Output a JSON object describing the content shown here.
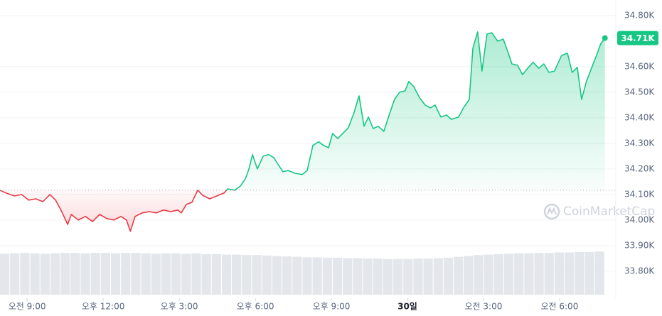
{
  "chart_data": {
    "type": "line",
    "x": [
      7.93,
      8.16,
      8.5,
      8.78,
      9.06,
      9.34,
      9.62,
      9.9,
      10.12,
      10.32,
      10.6,
      10.74,
      11.02,
      11.3,
      11.58,
      11.86,
      12.14,
      12.42,
      12.7,
      12.92,
      13.07,
      13.26,
      13.54,
      13.82,
      14.1,
      14.38,
      14.66,
      14.95,
      15.08,
      15.28,
      15.5,
      15.73,
      15.92,
      16.2,
      16.48,
      16.77,
      16.91,
      17.19,
      17.41,
      17.61,
      17.75,
      17.89,
      18.08,
      18.31,
      18.53,
      18.73,
      18.87,
      19.09,
      19.29,
      19.57,
      19.85,
      20.05,
      20.27,
      20.5,
      20.69,
      20.89,
      21.05,
      21.25,
      21.45,
      21.67,
      21.9,
      22.09,
      22.29,
      22.46,
      22.65,
      22.85,
      23.07,
      23.3,
      23.49,
      23.69,
      23.91,
      24.05,
      24.25,
      24.48,
      24.7,
      24.9,
      25.09,
      25.32,
      25.54,
      25.74,
      26.02,
      26.21,
      26.44,
      26.58,
      26.77,
      26.94,
      27.14,
      27.33,
      27.56,
      27.78,
      27.98,
      28.12,
      28.34,
      28.54,
      28.74,
      28.96,
      29.18,
      29.38,
      29.58,
      29.8,
      30.08,
      30.31,
      30.5,
      30.7,
      30.87,
      31.06,
      31.26,
      31.48,
      31.62,
      31.79
    ],
    "values": [
      34117,
      34106,
      34094,
      34100,
      34078,
      34083,
      34072,
      34100,
      34078,
      34042,
      33983,
      34022,
      34000,
      34014,
      33994,
      34022,
      34006,
      34000,
      34014,
      34000,
      33956,
      34014,
      34028,
      34033,
      34028,
      34039,
      34033,
      34039,
      34028,
      34061,
      34069,
      34117,
      34097,
      34083,
      34094,
      34106,
      34122,
      34117,
      34133,
      34161,
      34200,
      34256,
      34200,
      34250,
      34256,
      34244,
      34222,
      34189,
      34194,
      34183,
      34178,
      34194,
      34292,
      34306,
      34292,
      34283,
      34339,
      34319,
      34339,
      34361,
      34422,
      34486,
      34367,
      34403,
      34358,
      34367,
      34347,
      34417,
      34472,
      34500,
      34506,
      34542,
      34522,
      34478,
      34450,
      34439,
      34450,
      34403,
      34411,
      34394,
      34403,
      34439,
      34472,
      34672,
      34736,
      34583,
      34728,
      34733,
      34700,
      34708,
      34653,
      34611,
      34606,
      34569,
      34594,
      34617,
      34594,
      34611,
      34578,
      34583,
      34644,
      34653,
      34578,
      34597,
      34472,
      34542,
      34594,
      34650,
      34689,
      34712
    ],
    "baseline": 34117,
    "color_up": "#16c784",
    "color_down": "#ea3943",
    "current": {
      "value": 34712,
      "label": "34.71K"
    },
    "xlim": [
      7.93,
      32.19
    ],
    "xticks": [
      {
        "value": 9,
        "label": "오전 9:00"
      },
      {
        "value": 12,
        "label": "오후 12:00"
      },
      {
        "value": 15,
        "label": "오후 3:00"
      },
      {
        "value": 18,
        "label": "오후 6:00"
      },
      {
        "value": 21,
        "label": "오후 9:00"
      },
      {
        "value": 24,
        "label": "30일"
      },
      {
        "value": 27,
        "label": "오전 3:00"
      },
      {
        "value": 30,
        "label": "오전 6:00"
      }
    ],
    "ylim": [
      33694,
      34861
    ],
    "yticks": [
      {
        "value": 34800,
        "label": "34.80K"
      },
      {
        "value": 34600,
        "label": "34.60K"
      },
      {
        "value": 34500,
        "label": "34.50K"
      },
      {
        "value": 34400,
        "label": "34.40K"
      },
      {
        "value": 34300,
        "label": "34.30K"
      },
      {
        "value": 34200,
        "label": "34.20K"
      },
      {
        "value": 34100,
        "label": "34.10K"
      },
      {
        "value": 34000,
        "label": "34.00K"
      },
      {
        "value": 33900,
        "label": "33.90K"
      },
      {
        "value": 33800,
        "label": "33.80K"
      }
    ],
    "grid": true,
    "volume": {
      "values": [
        93,
        94,
        95,
        94,
        93,
        94,
        95,
        95,
        94,
        95,
        95,
        94,
        95,
        95,
        94,
        93,
        94,
        94,
        93,
        94,
        92,
        92,
        91,
        91,
        90,
        90,
        89,
        88,
        87,
        86,
        85,
        85,
        84,
        84,
        83,
        83,
        82,
        82,
        81,
        81,
        81,
        82,
        82,
        83,
        84,
        86,
        88,
        90,
        91,
        92,
        93,
        94,
        94,
        95,
        95,
        96,
        96,
        97,
        97,
        98
      ],
      "ylim": [
        0,
        100
      ],
      "color": "#e3e6ea"
    },
    "watermark": "CoinMarketCap"
  }
}
